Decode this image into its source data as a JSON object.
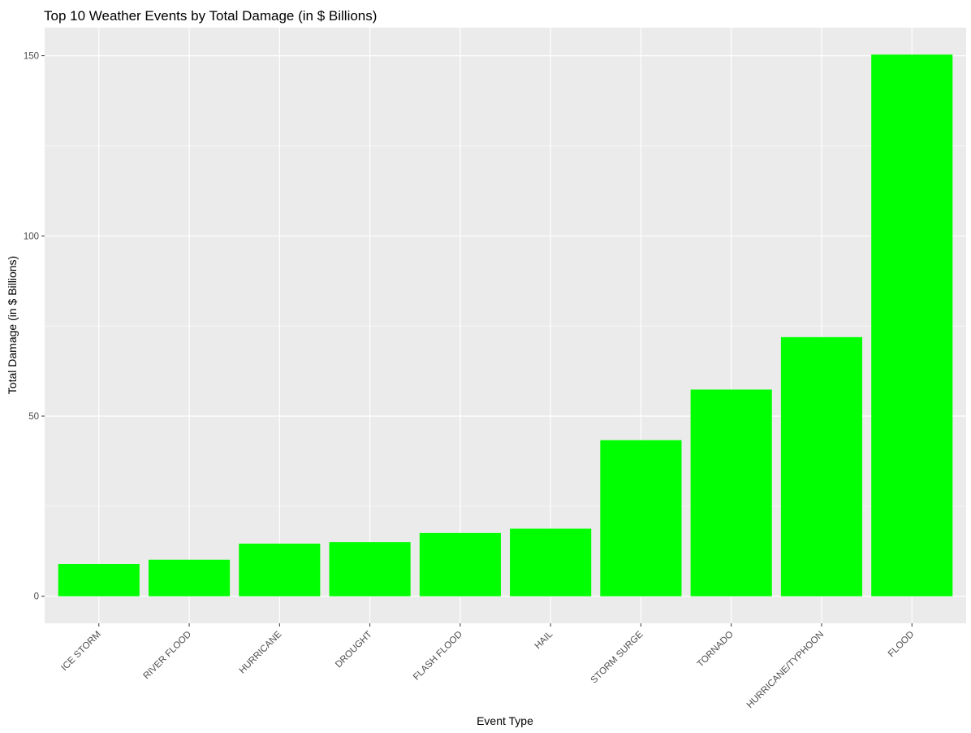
{
  "chart_data": {
    "type": "bar",
    "title": "Top 10 Weather Events by Total Damage (in $ Billions)",
    "xlabel": "Event Type",
    "ylabel": "Total Damage (in $ Billions)",
    "categories": [
      "ICE STORM",
      "RIVER FLOOD",
      "HURRICANE",
      "DROUGHT",
      "FLASH FLOOD",
      "HAIL",
      "STORM SURGE",
      "TORNADO",
      "HURRICANE/TYPHOON",
      "FLOOD"
    ],
    "values": [
      8.97,
      10.15,
      14.61,
      15.02,
      17.56,
      18.76,
      43.32,
      57.35,
      71.91,
      150.32
    ],
    "ylim": [
      -7.5,
      157.8
    ],
    "yticks": [
      0,
      50,
      100,
      150
    ],
    "ytick_labels": [
      "0",
      "50",
      "100",
      "150"
    ],
    "grid": true,
    "legend": "none",
    "colors": {
      "bar": "#00ff00",
      "panel": "#ebebeb",
      "grid_major": "#ffffff",
      "tick_text": "#4d4d4d",
      "tick_mark": "#333333"
    }
  }
}
